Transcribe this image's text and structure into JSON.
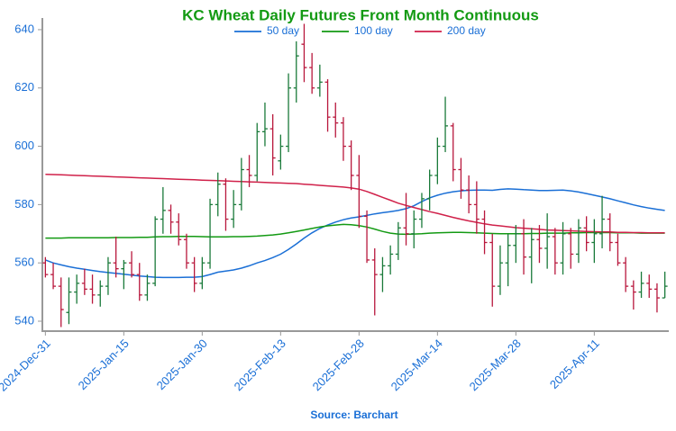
{
  "chart_data": {
    "type": "ohlc",
    "title": "KC Wheat Daily Futures Front Month Continuous",
    "source": "Source: Barchart",
    "categories": [
      "2024-Dec-31",
      null,
      null,
      null,
      null,
      null,
      null,
      null,
      null,
      null,
      "2025-Jan-15",
      null,
      null,
      null,
      null,
      null,
      null,
      null,
      null,
      null,
      "2025-Jan-30",
      null,
      null,
      null,
      null,
      null,
      null,
      null,
      null,
      null,
      "2025-Feb-13",
      null,
      null,
      null,
      null,
      null,
      null,
      null,
      null,
      null,
      "2025-Feb-28",
      null,
      null,
      null,
      null,
      null,
      null,
      null,
      null,
      null,
      "2025-Mar-14",
      null,
      null,
      null,
      null,
      null,
      null,
      null,
      null,
      null,
      "2025-Mar-28",
      null,
      null,
      null,
      null,
      null,
      null,
      null,
      null,
      null,
      "2025-Apr-11",
      null,
      null,
      null,
      null,
      null,
      null,
      null,
      null,
      null
    ],
    "open": [
      560,
      556,
      552,
      543,
      550,
      553,
      551,
      549,
      552,
      560,
      558,
      560,
      556,
      549,
      553,
      575,
      578,
      574,
      568,
      560,
      553,
      560,
      580,
      587,
      575,
      580,
      592,
      590,
      605,
      606,
      595,
      600,
      620,
      635,
      627,
      620,
      622,
      610,
      608,
      600,
      590,
      576,
      561,
      556,
      559,
      563,
      572,
      570,
      575,
      582,
      590,
      600,
      607,
      592,
      585,
      580,
      575,
      567,
      552,
      560,
      566,
      570,
      562,
      568,
      565,
      569,
      560,
      570,
      563,
      572,
      567,
      570,
      575,
      567,
      560,
      552,
      550,
      553,
      551,
      548
    ],
    "high": [
      562,
      560,
      555,
      555,
      556,
      558,
      556,
      554,
      562,
      569,
      561,
      564,
      560,
      556,
      576,
      586,
      580,
      577,
      570,
      562,
      562,
      582,
      591,
      589,
      585,
      596,
      597,
      608,
      615,
      611,
      604,
      625,
      636,
      642,
      632,
      628,
      623,
      615,
      610,
      602,
      597,
      578,
      565,
      562,
      566,
      574,
      584,
      578,
      584,
      592,
      603,
      617,
      608,
      596,
      590,
      588,
      578,
      570,
      566,
      570,
      573,
      575,
      572,
      573,
      577,
      572,
      574,
      572,
      575,
      576,
      575,
      583,
      577,
      570,
      562,
      554,
      557,
      556,
      553,
      557
    ],
    "low": [
      555,
      551,
      538,
      539,
      546,
      549,
      546,
      545,
      549,
      555,
      551,
      555,
      547,
      547,
      552,
      570,
      570,
      566,
      558,
      550,
      551,
      558,
      576,
      571,
      572,
      578,
      586,
      588,
      600,
      590,
      592,
      598,
      615,
      622,
      618,
      617,
      605,
      603,
      595,
      585,
      572,
      560,
      542,
      550,
      556,
      561,
      566,
      565,
      572,
      578,
      587,
      598,
      588,
      582,
      577,
      570,
      563,
      545,
      549,
      552,
      560,
      556,
      553,
      560,
      558,
      556,
      556,
      558,
      560,
      564,
      560,
      565,
      564,
      559,
      550,
      544,
      548,
      548,
      543,
      548
    ],
    "close": [
      556,
      552,
      544,
      550,
      553,
      551,
      549,
      552,
      560,
      558,
      560,
      556,
      549,
      553,
      575,
      578,
      574,
      568,
      560,
      553,
      560,
      580,
      587,
      575,
      580,
      592,
      590,
      605,
      606,
      596,
      600,
      620,
      631,
      627,
      620,
      622,
      610,
      608,
      600,
      590,
      576,
      561,
      556,
      559,
      563,
      572,
      570,
      575,
      582,
      590,
      600,
      607,
      592,
      585,
      580,
      575,
      567,
      552,
      560,
      566,
      570,
      562,
      568,
      565,
      569,
      560,
      570,
      563,
      572,
      567,
      570,
      575,
      567,
      560,
      552,
      550,
      553,
      551,
      548,
      552
    ],
    "up_color": "#1a7a3a",
    "down_color": "#b8173c",
    "series": [
      {
        "name": "50 day",
        "color": "#1a6fd6",
        "values": [
          561,
          560,
          559.3,
          558.7,
          558.2,
          557.8,
          557.4,
          557,
          556.7,
          556.4,
          556.1,
          555.8,
          555.5,
          555.3,
          555.1,
          555,
          555,
          555,
          555.1,
          555.1,
          555.3,
          556,
          556.8,
          557.2,
          557.6,
          558.2,
          559,
          560,
          560.8,
          561.8,
          563,
          564.6,
          566.5,
          568.5,
          570.3,
          571.8,
          573,
          574,
          574.8,
          575.4,
          575.8,
          576.3,
          576.8,
          577.2,
          577.6,
          578,
          578.6,
          579.6,
          581,
          582.3,
          583.2,
          583.9,
          584.4,
          584.7,
          584.9,
          585,
          585,
          584.9,
          585.2,
          585.4,
          585.3,
          585.1,
          585,
          584.8,
          584.8,
          584.9,
          585,
          584.7,
          584.3,
          583.8,
          583.2,
          582.6,
          582,
          581.3,
          580.6,
          579.9,
          579.3,
          578.8,
          578.4,
          578
        ]
      },
      {
        "name": "100 day",
        "color": "#139a13",
        "values": [
          568.5,
          568.5,
          568.5,
          568.6,
          568.6,
          568.6,
          568.6,
          568.6,
          568.6,
          568.7,
          568.7,
          568.7,
          568.8,
          568.8,
          568.9,
          569,
          569,
          569.1,
          569.1,
          569.1,
          569,
          568.9,
          568.9,
          568.9,
          569,
          569,
          569.1,
          569.2,
          569.4,
          569.6,
          569.9,
          570.3,
          570.8,
          571.3,
          571.8,
          572.3,
          572.7,
          573,
          573.2,
          573.1,
          572.8,
          572.3,
          571.6,
          570.8,
          570.2,
          569.9,
          569.8,
          569.9,
          570,
          570.2,
          570.3,
          570.4,
          570.5,
          570.5,
          570.4,
          570.3,
          570.2,
          570.1,
          570,
          570,
          570,
          570,
          570.1,
          570.1,
          570.2,
          570.2,
          570.2,
          570.3,
          570.3,
          570.4,
          570.4,
          570.4,
          570.4,
          570.3,
          570.3,
          570.3,
          570.2,
          570.2,
          570.2,
          570.2
        ]
      },
      {
        "name": "200 day",
        "color": "#d0214a",
        "values": [
          590.4,
          590.3,
          590.2,
          590.1,
          590,
          589.9,
          589.8,
          589.7,
          589.6,
          589.5,
          589.4,
          589.3,
          589.2,
          589.1,
          589,
          588.9,
          588.8,
          588.7,
          588.6,
          588.5,
          588.4,
          588.3,
          588.2,
          588.1,
          588,
          587.9,
          587.8,
          587.7,
          587.6,
          587.5,
          587.4,
          587.3,
          587.2,
          587,
          586.8,
          586.6,
          586.4,
          586.2,
          586,
          585.7,
          585.3,
          584.5,
          583.5,
          582.5,
          581.5,
          580.5,
          579.7,
          579,
          578.3,
          577.6,
          577,
          576.3,
          575.6,
          575,
          574.4,
          573.9,
          573.4,
          573,
          572.7,
          572.4,
          572.1,
          571.9,
          571.7,
          571.5,
          571.3,
          571.2,
          571.1,
          571,
          570.9,
          570.8,
          570.7,
          570.6,
          570.6,
          570.5,
          570.5,
          570.4,
          570.4,
          570.3,
          570.3,
          570.3
        ]
      }
    ],
    "ylim": [
      536.6,
      644
    ],
    "yticks": [
      540,
      560,
      580,
      600,
      620,
      640
    ]
  }
}
